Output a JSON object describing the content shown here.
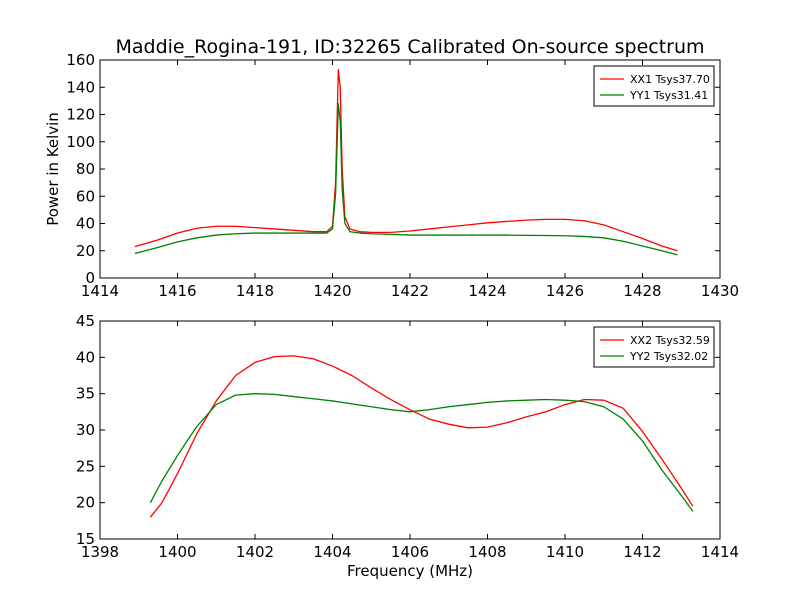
{
  "chart_data": [
    {
      "type": "line",
      "title": "Maddie_Rogina-191, ID:32265 Calibrated On-source spectrum",
      "xlabel": "",
      "ylabel": "Power in Kelvin",
      "xlim": [
        1414,
        1430
      ],
      "ylim": [
        0,
        160
      ],
      "xticks": [
        "1414",
        "1416",
        "1418",
        "1420",
        "1422",
        "1424",
        "1426",
        "1428",
        "1430"
      ],
      "yticks": [
        "0",
        "20",
        "40",
        "60",
        "80",
        "100",
        "120",
        "140",
        "160"
      ],
      "legend_position": "top-right",
      "grid": false,
      "series": [
        {
          "name": "XX1 Tsys37.70",
          "color": "#ff0000",
          "x": [
            1414.9,
            1415.5,
            1416.0,
            1416.5,
            1417.0,
            1417.5,
            1418.0,
            1418.5,
            1419.0,
            1419.5,
            1419.85,
            1420.0,
            1420.08,
            1420.15,
            1420.2,
            1420.25,
            1420.32,
            1420.45,
            1420.7,
            1421.0,
            1421.5,
            1422.0,
            1422.5,
            1423.0,
            1423.5,
            1424.0,
            1424.5,
            1425.0,
            1425.5,
            1426.0,
            1426.5,
            1427.0,
            1427.5,
            1428.0,
            1428.5,
            1428.9
          ],
          "y": [
            23,
            28,
            33,
            36.5,
            38,
            38,
            37,
            36,
            35,
            34,
            34,
            38,
            70,
            153,
            140,
            80,
            45,
            36,
            34,
            33.5,
            33.5,
            34.5,
            36,
            37.5,
            39,
            40.5,
            41.5,
            42.5,
            43,
            43,
            42,
            39,
            34,
            29,
            23.5,
            20
          ]
        },
        {
          "name": "YY1 Tsys31.41",
          "color": "#008000",
          "x": [
            1414.9,
            1415.5,
            1416.0,
            1416.5,
            1417.0,
            1417.5,
            1418.0,
            1418.5,
            1419.0,
            1419.5,
            1419.85,
            1420.0,
            1420.08,
            1420.15,
            1420.2,
            1420.25,
            1420.32,
            1420.45,
            1420.7,
            1421.0,
            1421.5,
            1422.0,
            1422.5,
            1423.0,
            1423.5,
            1424.0,
            1424.5,
            1425.0,
            1425.5,
            1426.0,
            1426.5,
            1427.0,
            1427.5,
            1428.0,
            1428.5,
            1428.9
          ],
          "y": [
            18,
            22.5,
            26.5,
            29.5,
            31.5,
            32.5,
            33,
            33,
            33,
            33,
            33,
            36,
            62,
            128,
            115,
            65,
            40,
            34,
            33,
            32.5,
            32,
            31.5,
            31.5,
            31.5,
            31.5,
            31.5,
            31.5,
            31.3,
            31.2,
            31,
            30.5,
            29.5,
            27,
            23.5,
            20,
            17
          ]
        }
      ]
    },
    {
      "type": "line",
      "title": "",
      "xlabel": "Frequency (MHz)",
      "ylabel": "",
      "xlim": [
        1398,
        1414
      ],
      "ylim": [
        15,
        45
      ],
      "xticks": [
        "1398",
        "1400",
        "1402",
        "1404",
        "1406",
        "1408",
        "1410",
        "1412",
        "1414"
      ],
      "yticks": [
        "15",
        "20",
        "25",
        "30",
        "35",
        "40",
        "45"
      ],
      "legend_position": "top-right",
      "grid": false,
      "series": [
        {
          "name": "XX2 Tsys32.59",
          "color": "#ff0000",
          "x": [
            1399.3,
            1399.6,
            1400.0,
            1400.5,
            1401.0,
            1401.5,
            1402.0,
            1402.5,
            1403.0,
            1403.5,
            1404.0,
            1404.5,
            1405.0,
            1405.5,
            1406.0,
            1406.5,
            1407.0,
            1407.5,
            1408.0,
            1408.5,
            1409.0,
            1409.5,
            1410.0,
            1410.5,
            1411.0,
            1411.5,
            1412.0,
            1412.5,
            1413.0,
            1413.3
          ],
          "y": [
            18,
            20,
            24,
            29.5,
            34,
            37.5,
            39.3,
            40.1,
            40.2,
            39.8,
            38.8,
            37.5,
            35.8,
            34.2,
            32.8,
            31.5,
            30.8,
            30.3,
            30.4,
            31,
            31.8,
            32.5,
            33.5,
            34.2,
            34.1,
            33,
            29.8,
            26,
            22,
            19.5
          ]
        },
        {
          "name": "YY2 Tsys32.02",
          "color": "#008000",
          "x": [
            1399.3,
            1399.6,
            1400.0,
            1400.5,
            1401.0,
            1401.5,
            1402.0,
            1402.5,
            1403.0,
            1403.5,
            1404.0,
            1404.5,
            1405.0,
            1405.5,
            1406.0,
            1406.5,
            1407.0,
            1407.5,
            1408.0,
            1408.5,
            1409.0,
            1409.5,
            1410.0,
            1410.5,
            1411.0,
            1411.5,
            1412.0,
            1412.5,
            1413.0,
            1413.3
          ],
          "y": [
            20,
            23,
            26.5,
            30.5,
            33.5,
            34.8,
            35,
            34.9,
            34.6,
            34.3,
            34,
            33.6,
            33.2,
            32.8,
            32.5,
            32.8,
            33.2,
            33.5,
            33.8,
            34,
            34.1,
            34.2,
            34.1,
            33.9,
            33.2,
            31.5,
            28.5,
            24.5,
            21,
            18.8
          ]
        }
      ]
    }
  ]
}
